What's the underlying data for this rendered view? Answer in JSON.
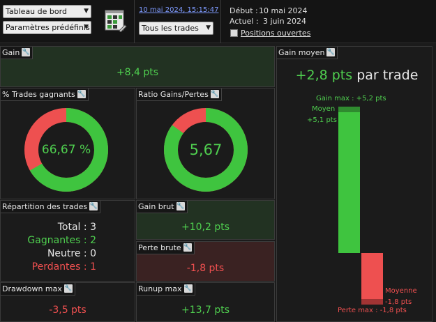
{
  "toolbar": {
    "view_select": "Tableau de bord",
    "preset_select": "Paramètres prédéfinis",
    "date_link": "10 mai 2024, 15:15:47",
    "trades_select": "Tous les trades",
    "debut_label": "Début :",
    "debut_value": "10 mai 2024",
    "actuel_label": "Actuel :",
    "actuel_value": "3 juin 2024",
    "positions_label": "Positions ouvertes",
    "positions_checked": false
  },
  "panels": {
    "gain": {
      "title": "Gain",
      "value": "+8,4 pts"
    },
    "trades_gagnants": {
      "title": "% Trades gagnants",
      "value": "66,67 %",
      "win_fraction": 0.6667
    },
    "ratio": {
      "title": "Ratio Gains/Pertes",
      "value": "5,67",
      "win_fraction": 0.85
    },
    "repartition": {
      "title": "Répartition des trades",
      "total_label": "Total :",
      "total_value": "3",
      "gagnantes_label": "Gagnantes :",
      "gagnantes_value": "2",
      "neutre_label": "Neutre :",
      "neutre_value": "0",
      "perdantes_label": "Perdantes :",
      "perdantes_value": "1"
    },
    "gain_brut": {
      "title": "Gain brut",
      "value": "+10,2 pts"
    },
    "perte_brute": {
      "title": "Perte brute",
      "value": "-1,8 pts"
    },
    "drawdown": {
      "title": "Drawdown max",
      "value": "-3,5 pts"
    },
    "runup": {
      "title": "Runup max",
      "value": "+13,7 pts"
    },
    "gain_moyen": {
      "title": "Gain moyen",
      "value": "+2,8 pts",
      "suffix": "par trade",
      "gain_max_label": "Gain max : +5,2 pts",
      "moyen_label": "Moyen",
      "moyen_value": "+5,1 pts",
      "moyenne_label": "Moyenne",
      "moyenne_value": "-1,8 pts",
      "perte_max_label": "Perte max : -1,8 pts"
    }
  },
  "colors": {
    "win": "#3fc43f",
    "loss": "#ee5050",
    "green_bg": "#223222",
    "red_bg": "#3a2222"
  },
  "icons": {
    "wrench": "wrench-icon",
    "app": "trade-table-icon"
  }
}
